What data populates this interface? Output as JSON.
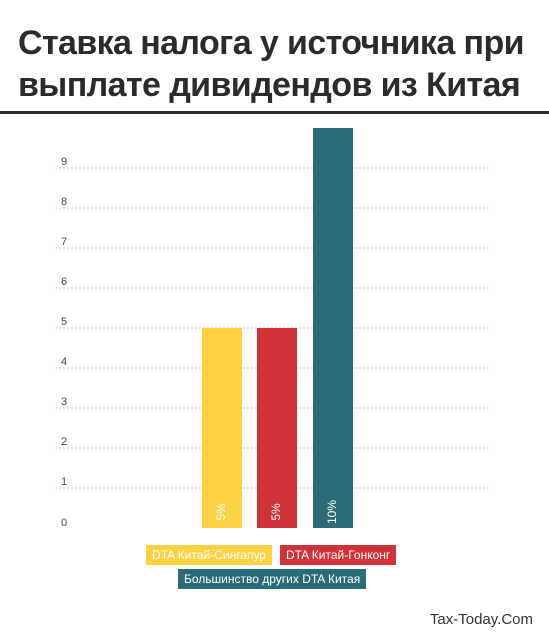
{
  "header": {
    "title_line1": "Ставка налога у источника при",
    "title_line2": "выплате дивидендов из Китая"
  },
  "chart_data": {
    "type": "bar",
    "title": "Ставка налога у источника при выплате дивидендов из Китая",
    "xlabel": "",
    "ylabel": "",
    "ylim": [
      0,
      10
    ],
    "y_ticks": [
      "0",
      "1",
      "2",
      "3",
      "4",
      "5",
      "6",
      "7",
      "8",
      "9"
    ],
    "grid": true,
    "legend_position": "bottom",
    "series": [
      {
        "name": "DTA Китай-Сингапур",
        "value": 5,
        "label": "5%",
        "color": "#fdd144"
      },
      {
        "name": "DTA Китай-Гонконг",
        "value": 5,
        "label": "5%",
        "color": "#cf3339"
      },
      {
        "name": "Большинство других DTA Китая",
        "value": 10,
        "label": "10%",
        "color": "#2b6b78"
      }
    ]
  },
  "footer": {
    "credit": "Tax-Today.Com"
  }
}
